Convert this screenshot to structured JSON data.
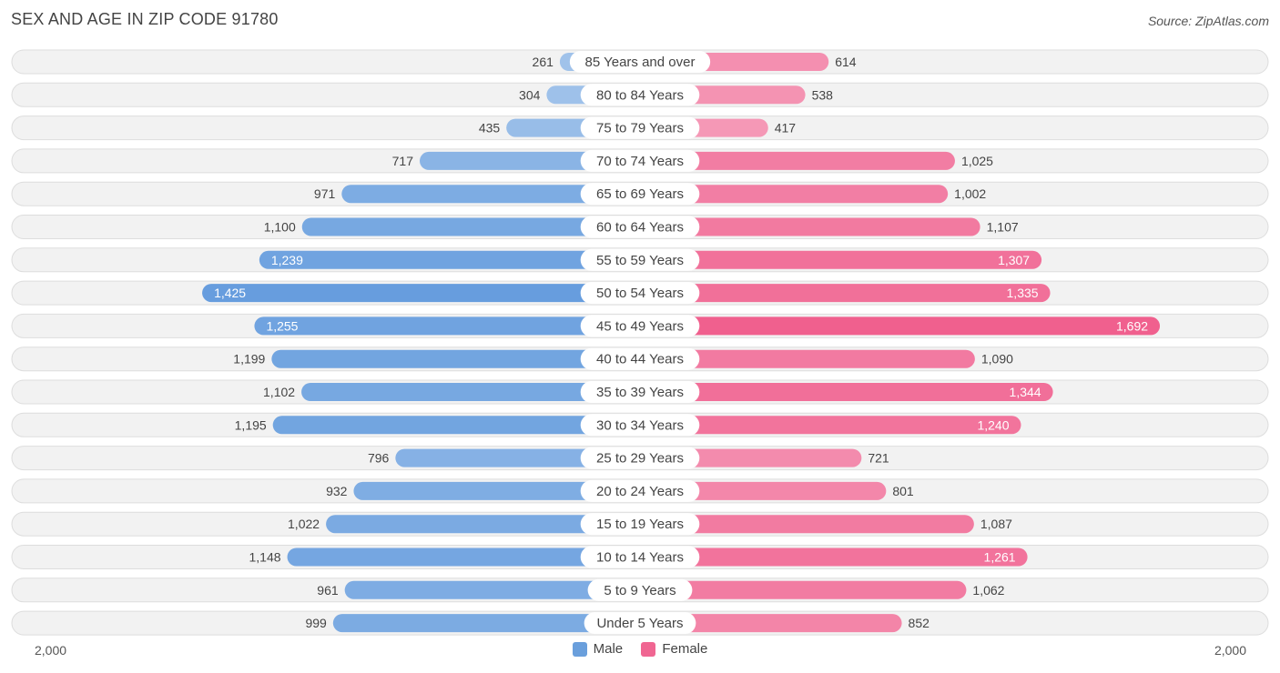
{
  "title": "SEX AND AGE IN ZIP CODE 91780",
  "source": "Source: ZipAtlas.com",
  "axis": {
    "left_label": "2,000",
    "right_label": "2,000"
  },
  "legend": {
    "male": "Male",
    "female": "Female"
  },
  "colors": {
    "male": "#6a9fdc",
    "female": "#f06692",
    "row_bg": "#f2f2f2",
    "row_border": "#dddddd"
  },
  "chart_data": {
    "type": "bar",
    "orientation": "horizontal-diverging",
    "max": 2000,
    "categories": [
      "85 Years and over",
      "80 to 84 Years",
      "75 to 79 Years",
      "70 to 74 Years",
      "65 to 69 Years",
      "60 to 64 Years",
      "55 to 59 Years",
      "50 to 54 Years",
      "45 to 49 Years",
      "40 to 44 Years",
      "35 to 39 Years",
      "30 to 34 Years",
      "25 to 29 Years",
      "20 to 24 Years",
      "15 to 19 Years",
      "10 to 14 Years",
      "5 to 9 Years",
      "Under 5 Years"
    ],
    "series": [
      {
        "name": "Male",
        "values": [
          261,
          304,
          435,
          717,
          971,
          1100,
          1239,
          1425,
          1255,
          1199,
          1102,
          1195,
          796,
          932,
          1022,
          1148,
          961,
          999
        ],
        "labels": [
          "261",
          "304",
          "435",
          "717",
          "971",
          "1,100",
          "1,239",
          "1,425",
          "1,255",
          "1,199",
          "1,102",
          "1,195",
          "796",
          "932",
          "1,022",
          "1,148",
          "961",
          "999"
        ]
      },
      {
        "name": "Female",
        "values": [
          614,
          538,
          417,
          1025,
          1002,
          1107,
          1307,
          1335,
          1692,
          1090,
          1344,
          1240,
          721,
          801,
          1087,
          1261,
          1062,
          852
        ],
        "labels": [
          "614",
          "538",
          "417",
          "1,025",
          "1,002",
          "1,107",
          "1,307",
          "1,335",
          "1,692",
          "1,090",
          "1,344",
          "1,240",
          "721",
          "801",
          "1,087",
          "1,261",
          "1,062",
          "852"
        ]
      }
    ]
  }
}
